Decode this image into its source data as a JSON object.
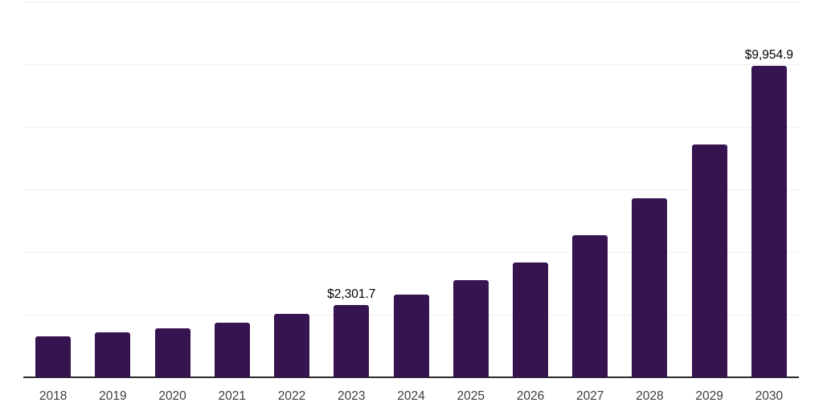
{
  "chart_data": {
    "type": "bar",
    "title": "",
    "xlabel": "",
    "ylabel": "",
    "categories": [
      "2018",
      "2019",
      "2020",
      "2021",
      "2022",
      "2023",
      "2024",
      "2025",
      "2026",
      "2027",
      "2028",
      "2029",
      "2030"
    ],
    "values": [
      1295,
      1440,
      1576,
      1745,
      2026,
      2301.7,
      2632,
      3090,
      3662,
      4540,
      5706,
      7427,
      9954.9
    ],
    "data_labels": {
      "2023": "$2,301.7",
      "2030": "$9,954.9"
    },
    "ylim": [
      0,
      12000
    ],
    "grid_interval": 2000,
    "grid": true,
    "legend": false,
    "colors": {
      "bar": "#351450",
      "axis": "#2b2b2b",
      "gridline": "#f0f0f1",
      "tick_label": "#3d3d3d",
      "data_label": "#000000",
      "background": "#ffffff"
    }
  }
}
